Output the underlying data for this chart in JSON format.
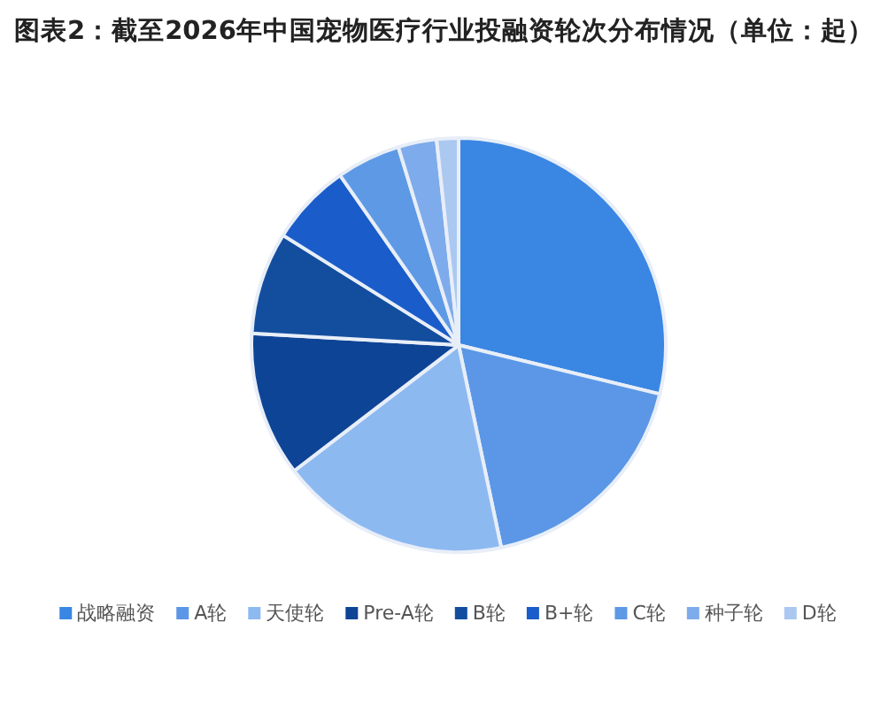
{
  "chart_data": {
    "type": "pie",
    "title": "图表2：截至2026年中国宠物医疗行业投融资轮次分布情况（单位：起）",
    "categories": [
      "战略融资",
      "A轮",
      "天使轮",
      "Pre-A轮",
      "B轮",
      "B+轮",
      "C轮",
      "种子轮",
      "D轮"
    ],
    "values": [
      28.8,
      17.9,
      17.9,
      11.3,
      8.0,
      6.4,
      5.0,
      3.0,
      1.7
    ],
    "colors": [
      "#3a86e3",
      "#5b97e6",
      "#8db9f1",
      "#0e4496",
      "#134e9e",
      "#1a5cc9",
      "#5d99e5",
      "#7eabeb",
      "#abc8f1"
    ],
    "legend": "bottom"
  }
}
